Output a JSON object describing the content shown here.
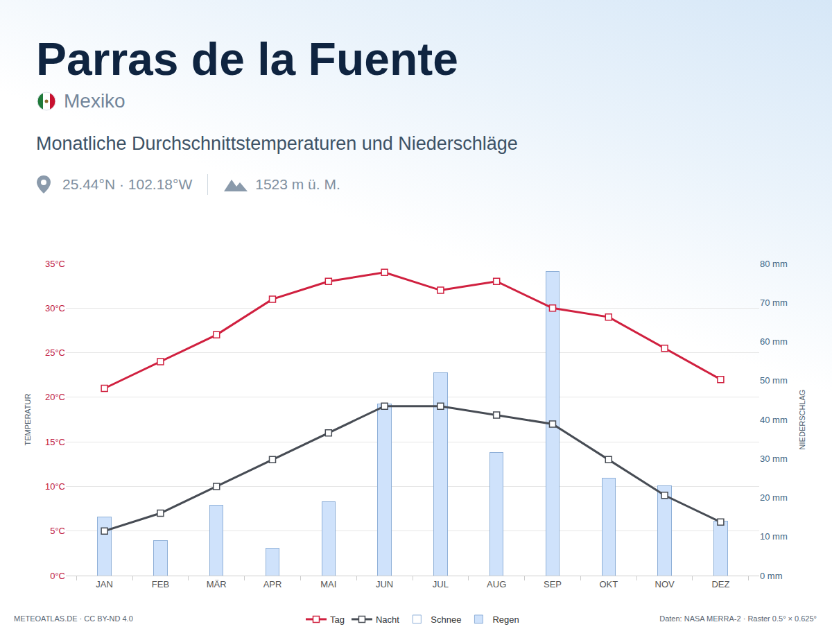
{
  "chart_data": {
    "type": "bar_line",
    "title": "Parras de la Fuente",
    "subtitle": "Mexiko",
    "caption": "Monatliche Durchschnittstemperaturen und Niederschläge",
    "location": "25.44°N · 102.18°W",
    "elevation": "1523 m ü. M.",
    "credit": "METEOATLAS.DE · CC BY-ND 4.0",
    "source": "Daten: NASA MERRA-2 · Raster 0.5° × 0.625°",
    "ylabel": "TEMPERATUR",
    "y2label": "NIEDERSCHLAG",
    "categories": [
      "JAN",
      "FEB",
      "MÄR",
      "APR",
      "MAI",
      "JUN",
      "JUL",
      "AUG",
      "SEP",
      "OKT",
      "NOV",
      "DEZ"
    ],
    "ylim": [
      0,
      35
    ],
    "yticks": [
      {
        "value": 0,
        "label": "0°C"
      },
      {
        "value": 5,
        "label": "5°C"
      },
      {
        "value": 10,
        "label": "10°C"
      },
      {
        "value": 15,
        "label": "15°C"
      },
      {
        "value": 20,
        "label": "20°C"
      },
      {
        "value": 25,
        "label": "25°C"
      },
      {
        "value": 30,
        "label": "30°C"
      },
      {
        "value": 35,
        "label": "35°C"
      }
    ],
    "y2lim": [
      0,
      80
    ],
    "y2ticks": [
      {
        "value": 0,
        "label": "0 mm"
      },
      {
        "value": 10,
        "label": "10 mm"
      },
      {
        "value": 20,
        "label": "20 mm"
      },
      {
        "value": 30,
        "label": "30 mm"
      },
      {
        "value": 40,
        "label": "40 mm"
      },
      {
        "value": 50,
        "label": "50 mm"
      },
      {
        "value": 60,
        "label": "60 mm"
      },
      {
        "value": 70,
        "label": "70 mm"
      },
      {
        "value": 80,
        "label": "80 mm"
      }
    ],
    "grid": true,
    "stacked": true,
    "legend": "bottom",
    "series": [
      {
        "name": "Tag",
        "type": "line",
        "color": "#d0203f",
        "marker": "square",
        "axis": "y",
        "values": [
          21,
          24,
          27,
          31,
          33,
          34,
          32,
          33,
          30,
          29,
          25.5,
          22
        ]
      },
      {
        "name": "Nacht",
        "type": "line",
        "color": "#474c54",
        "marker": "square",
        "axis": "y",
        "values": [
          5,
          7,
          10,
          13,
          16,
          19,
          19,
          18,
          17,
          13,
          9,
          6
        ]
      },
      {
        "name": "Schnee",
        "type": "bar",
        "color": "#ffffff",
        "axis": "y2",
        "values": [
          0,
          0,
          0,
          0,
          0,
          0,
          0,
          0,
          0,
          0,
          0,
          0
        ]
      },
      {
        "name": "Regen",
        "type": "bar",
        "color": "#cfe2fb",
        "axis": "y2",
        "values": [
          15,
          9,
          18,
          7,
          19,
          44,
          52,
          31.5,
          78,
          25,
          23,
          14
        ]
      }
    ]
  }
}
